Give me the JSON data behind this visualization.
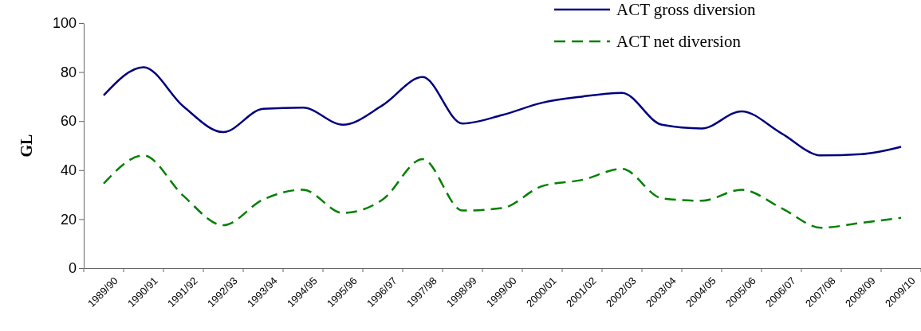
{
  "chart_data": {
    "type": "line",
    "ylabel": "GL",
    "categories": [
      "1989/90",
      "1990/91",
      "1991/92",
      "1992/93",
      "1993/94",
      "1994/95",
      "1995/96",
      "1996/97",
      "1997/98",
      "1998/99",
      "1999/00",
      "2000/01",
      "2001/02",
      "2002/03",
      "2003/04",
      "2004/05",
      "2005/06",
      "2006/07",
      "2007/08",
      "2008/09",
      "2009/10"
    ],
    "series": [
      {
        "name": "ACT gross diversion",
        "color": "#000080",
        "line_style": "solid",
        "values": [
          70.5,
          82,
          66,
          55.5,
          65,
          65.5,
          58.5,
          66.5,
          78,
          59,
          62.5,
          67.5,
          70,
          71.5,
          58.5,
          57,
          64,
          55,
          46,
          46.5,
          49.5
        ]
      },
      {
        "name": "ACT net diversion",
        "color": "#008000",
        "line_style": "dashed",
        "values": [
          34.5,
          46,
          29.5,
          17.5,
          28,
          32,
          22.5,
          28,
          44.5,
          23.5,
          24.5,
          33.5,
          36,
          40.5,
          28.5,
          27.5,
          32,
          24.5,
          16.5,
          18.5,
          20.5
        ]
      }
    ],
    "ylim": [
      0,
      100
    ],
    "yticks": [
      0,
      20,
      40,
      60,
      80,
      100
    ],
    "grid": false,
    "legend": "top right",
    "marker": "none"
  }
}
